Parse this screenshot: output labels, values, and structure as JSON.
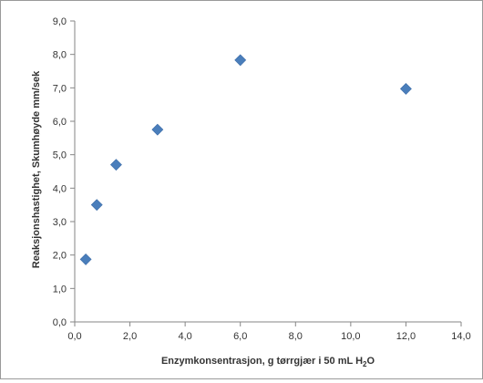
{
  "chart_data": {
    "type": "scatter",
    "title": "",
    "xlabel": {
      "main": "Enzymkonsentrasjon,  g tørrgjær i 50 mL H",
      "subscript": "2",
      "suffix": "O"
    },
    "ylabel": "Reaksjonshastighet, Skumhøyde mm/sek",
    "xlim": [
      0,
      14
    ],
    "ylim": [
      0,
      9
    ],
    "x_ticks": [
      "0,0",
      "2,0",
      "4,0",
      "6,0",
      "8,0",
      "10,0",
      "12,0",
      "14,0"
    ],
    "y_ticks": [
      "0,0",
      "1,0",
      "2,0",
      "3,0",
      "4,0",
      "5,0",
      "6,0",
      "7,0",
      "8,0",
      "9,0"
    ],
    "grid": false,
    "marker": "diamond",
    "marker_color": "#4a7ebb",
    "series": [
      {
        "points": [
          {
            "x": 0.4,
            "y": 1.87
          },
          {
            "x": 0.8,
            "y": 3.5
          },
          {
            "x": 1.5,
            "y": 4.7
          },
          {
            "x": 3.0,
            "y": 5.75
          },
          {
            "x": 6.0,
            "y": 7.83
          },
          {
            "x": 12.0,
            "y": 6.97
          }
        ]
      }
    ]
  }
}
